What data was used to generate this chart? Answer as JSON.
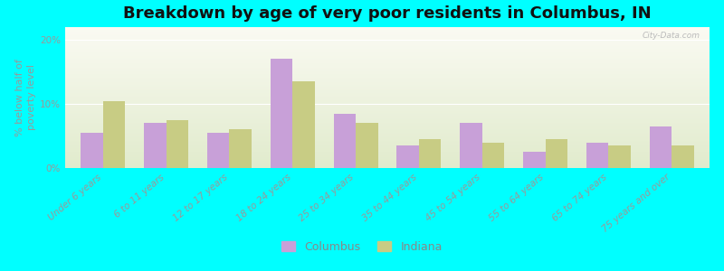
{
  "title": "Breakdown by age of very poor residents in Columbus, IN",
  "ylabel": "% below half of\npoverty level",
  "categories": [
    "Under 6 years",
    "6 to 11 years",
    "12 to 17 years",
    "18 to 24 years",
    "25 to 34 years",
    "35 to 44 years",
    "45 to 54 years",
    "55 to 64 years",
    "65 to 74 years",
    "75 years and over"
  ],
  "columbus_values": [
    5.5,
    7.0,
    5.5,
    17.0,
    8.5,
    3.5,
    7.0,
    2.5,
    4.0,
    6.5
  ],
  "indiana_values": [
    10.5,
    7.5,
    6.0,
    13.5,
    7.0,
    4.5,
    4.0,
    4.5,
    3.5,
    3.5
  ],
  "columbus_color": "#c8a0d8",
  "indiana_color": "#c8cc84",
  "ylim": [
    0,
    22
  ],
  "yticks": [
    0,
    10,
    20
  ],
  "ytick_labels": [
    "0%",
    "10%",
    "20%"
  ],
  "background_color": "#00ffff",
  "bar_width": 0.35,
  "title_fontsize": 13,
  "axis_fontsize": 8,
  "tick_fontsize": 7.5,
  "legend_labels": [
    "Columbus",
    "Indiana"
  ],
  "watermark": "City-Data.com"
}
